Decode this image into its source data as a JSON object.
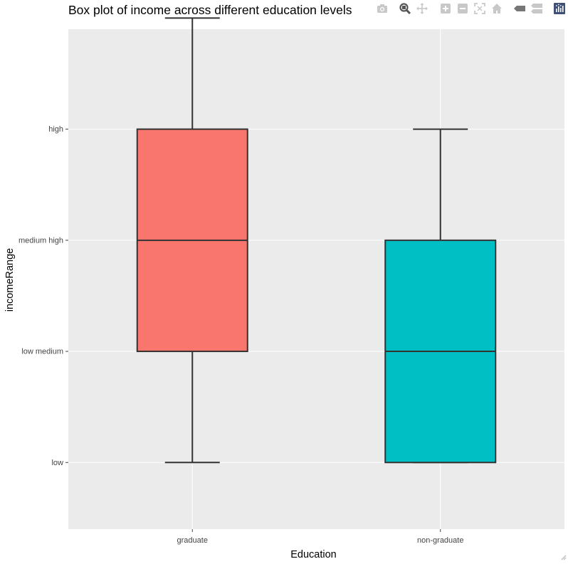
{
  "chart_data": {
    "type": "box",
    "title": "Box plot of income across different education levels",
    "xlabel": "Education",
    "ylabel": "incomeRange",
    "categories": [
      "graduate",
      "non-graduate"
    ],
    "y_levels": [
      "low",
      "low medium",
      "medium high",
      "high"
    ],
    "ylim": [
      0.4,
      4.9
    ],
    "grid": true,
    "series": [
      {
        "category": "graduate",
        "lower_whisker": 1,
        "q1": 2,
        "median": 3,
        "q3": 4,
        "upper_whisker": 5,
        "color": "#F8766D"
      },
      {
        "category": "non-graduate",
        "lower_whisker": 1,
        "q1": 1,
        "median": 2,
        "q3": 3,
        "upper_whisker": 4,
        "color": "#00BFC4"
      }
    ],
    "panel_background": "#EBEBEB",
    "grid_color": "#FFFFFF",
    "box_outline_color": "#333333"
  },
  "modebar": {
    "buttons": [
      {
        "name": "camera-icon",
        "color": "#c8c8c8"
      },
      {
        "name": "zoom-icon",
        "color": "#555555"
      },
      {
        "name": "pan-icon",
        "color": "#c8c8c8"
      },
      {
        "name": "zoom-in-icon",
        "color": "#c8c8c8"
      },
      {
        "name": "zoom-out-icon",
        "color": "#c8c8c8"
      },
      {
        "name": "autoscale-icon",
        "color": "#c8c8c8"
      },
      {
        "name": "home-icon",
        "color": "#c8c8c8"
      },
      {
        "name": "hover-closest-icon",
        "color": "#777777"
      },
      {
        "name": "hover-compare-icon",
        "color": "#c8c8c8"
      },
      {
        "name": "plotly-logo-icon",
        "color": "#3f4f75"
      }
    ]
  }
}
